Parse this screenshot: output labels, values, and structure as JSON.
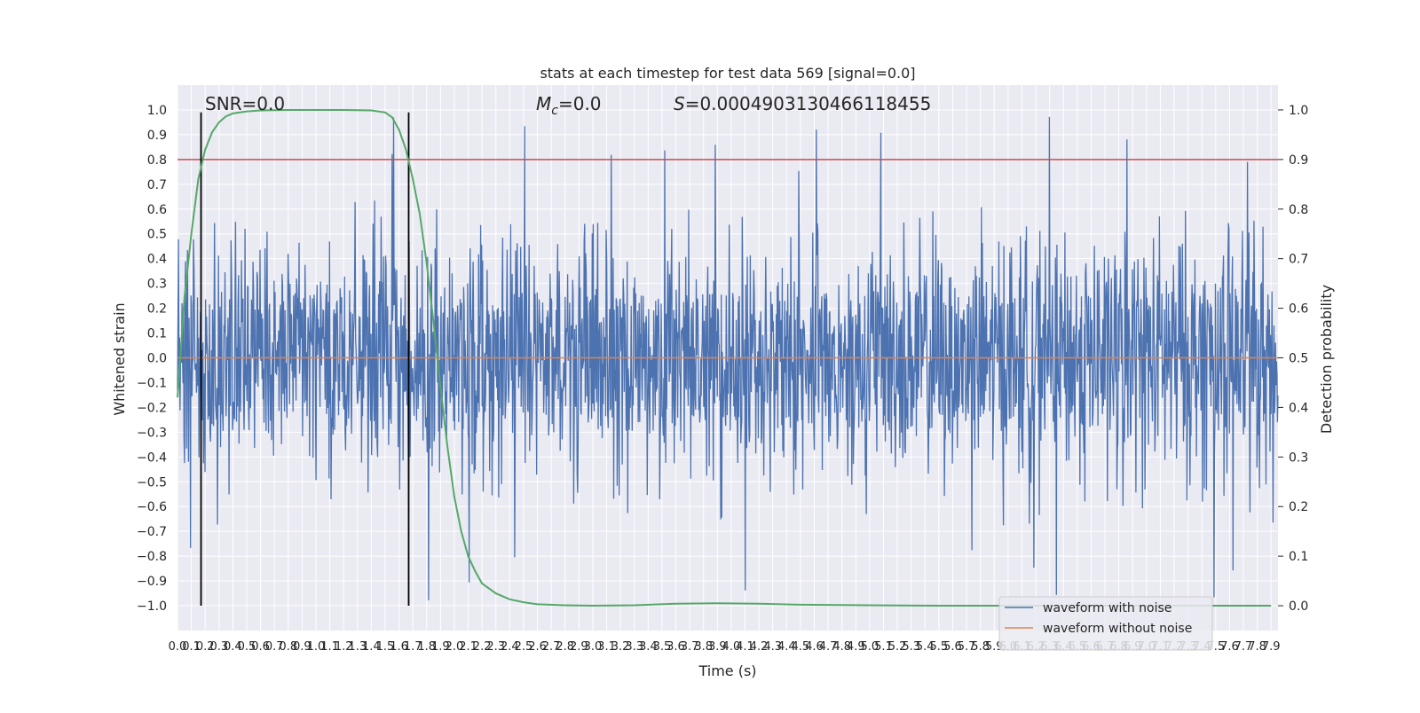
{
  "chart_data": {
    "type": "line",
    "title": "stats at each timestep for test data 569 [signal=0.0]",
    "xlabel": "Time (s)",
    "ylabel": "Whitened strain",
    "ylabel_right": "Detection probability",
    "xlim": [
      0.0,
      7.95
    ],
    "ylim": [
      -1.1,
      1.1
    ],
    "ylim_right": [
      -0.05,
      1.05
    ],
    "x_ticks": [
      "0.0",
      "0.1",
      "0.2",
      "0.3",
      "0.4",
      "0.5",
      "0.6",
      "0.7",
      "0.8",
      "0.9",
      "1.0",
      "1.1",
      "1.2",
      "1.3",
      "1.4",
      "1.5",
      "1.6",
      "1.7",
      "1.8",
      "1.9",
      "2.0",
      "2.1",
      "2.2",
      "2.3",
      "2.4",
      "2.5",
      "2.6",
      "2.7",
      "2.8",
      "2.9",
      "3.0",
      "3.1",
      "3.2",
      "3.3",
      "3.4",
      "3.5",
      "3.6",
      "3.7",
      "3.8",
      "3.9",
      "4.0",
      "4.1",
      "4.2",
      "4.3",
      "4.4",
      "4.5",
      "4.6",
      "4.7",
      "4.8",
      "4.9",
      "5.0",
      "5.1",
      "5.2",
      "5.3",
      "5.4",
      "5.5",
      "5.6",
      "5.7",
      "5.8",
      "5.9",
      "6.0",
      "6.1",
      "6.2",
      "6.3",
      "6.4",
      "6.5",
      "6.6",
      "6.7",
      "6.8",
      "6.9",
      "7.0",
      "7.1",
      "7.2",
      "7.3",
      "7.4",
      "7.5",
      "7.6",
      "7.7",
      "7.8",
      "7.9"
    ],
    "y_ticks": [
      "−1.0",
      "−0.9",
      "−0.8",
      "−0.7",
      "−0.6",
      "−0.5",
      "−0.4",
      "−0.3",
      "−0.2",
      "−0.1",
      "0.0",
      "0.1",
      "0.2",
      "0.3",
      "0.4",
      "0.5",
      "0.6",
      "0.7",
      "0.8",
      "0.9",
      "1.0"
    ],
    "y_ticks_right": [
      "0.0",
      "0.1",
      "0.2",
      "0.3",
      "0.4",
      "0.5",
      "0.6",
      "0.7",
      "0.8",
      "0.9",
      "1.0"
    ],
    "annotations": {
      "snr": "SNR=0.0",
      "mc_symbol": "M",
      "mc_sub": "c",
      "mc_value": "=0.0",
      "s_symbol": "S",
      "s_value": "=0.0004903130466118455"
    },
    "legend": {
      "placement": "lower-right",
      "entries": [
        {
          "label": "waveform with noise",
          "color": "#4c72b0"
        },
        {
          "label": "waveform without noise",
          "color": "#dd8452"
        }
      ]
    },
    "threshold": {
      "value": 0.9,
      "axis": "right",
      "color": "#c44e52"
    },
    "vertical_markers": [
      0.17,
      1.67
    ],
    "series": [
      {
        "name": "waveform with noise",
        "color": "#4c72b0",
        "envelope_max": 0.98,
        "envelope_min": -1.0
      },
      {
        "name": "waveform without noise",
        "color": "#dd8452",
        "values": 0.0
      },
      {
        "color": "#55a868",
        "axis": "right",
        "x": [
          0.0,
          0.05,
          0.1,
          0.15,
          0.2,
          0.25,
          0.3,
          0.35,
          0.4,
          0.5,
          0.6,
          0.8,
          1.0,
          1.2,
          1.4,
          1.5,
          1.55,
          1.6,
          1.65,
          1.7,
          1.75,
          1.8,
          1.85,
          1.9,
          1.95,
          2.0,
          2.05,
          2.1,
          2.15,
          2.2,
          2.3,
          2.4,
          2.5,
          2.6,
          2.8,
          3.0,
          3.3,
          3.6,
          3.9,
          4.2,
          4.5,
          5.0,
          5.5,
          6.0,
          6.5,
          7.0,
          7.5,
          7.9
        ],
        "y": [
          0.42,
          0.62,
          0.75,
          0.86,
          0.92,
          0.955,
          0.975,
          0.987,
          0.993,
          0.997,
          0.999,
          1.0,
          1.0,
          1.0,
          0.999,
          0.995,
          0.985,
          0.96,
          0.92,
          0.86,
          0.79,
          0.69,
          0.57,
          0.44,
          0.32,
          0.22,
          0.15,
          0.1,
          0.07,
          0.045,
          0.025,
          0.013,
          0.007,
          0.003,
          0.001,
          0.0,
          0.001,
          0.004,
          0.005,
          0.004,
          0.002,
          0.001,
          0.0,
          0.0,
          0.0,
          0.0,
          0.0,
          0.0
        ]
      }
    ]
  }
}
